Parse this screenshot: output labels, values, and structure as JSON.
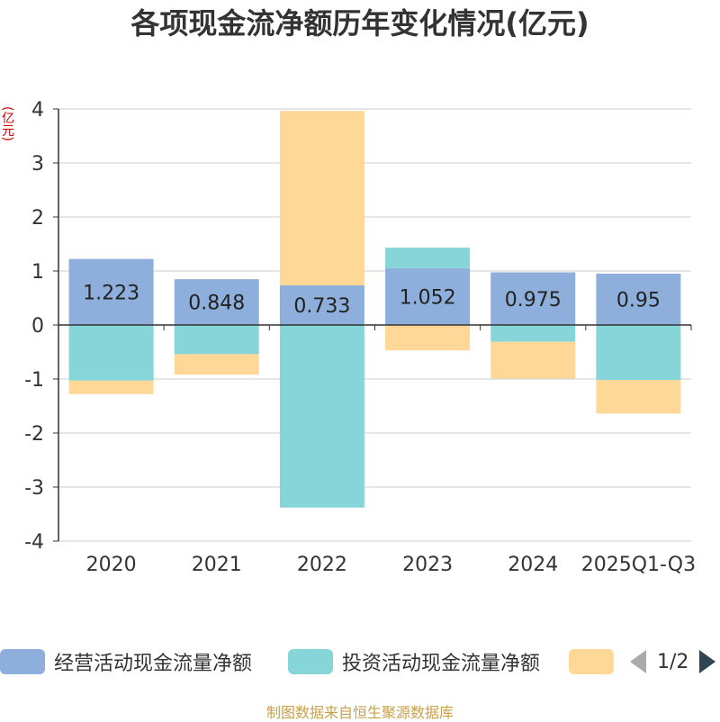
{
  "chart_data": {
    "type": "bar",
    "stacked": true,
    "title": "各项现金流净额历年变化情况(亿元)",
    "ylabel": "(亿元)",
    "xlabel": "",
    "ylim": [
      -4,
      4
    ],
    "yticks": [
      4,
      3,
      2,
      1,
      0,
      -1,
      -2,
      -3,
      -4
    ],
    "categories": [
      "2020",
      "2021",
      "2022",
      "2023",
      "2024",
      "2025Q1-Q3"
    ],
    "series": [
      {
        "name": "经营活动现金流量净额",
        "color": "#8eaedb",
        "values": [
          1.223,
          0.848,
          0.733,
          1.052,
          0.975,
          0.95
        ]
      },
      {
        "name": "投资活动现金流量净额",
        "color": "#86d5d8",
        "values": [
          -1.03,
          -0.54,
          -3.38,
          0.38,
          -0.31,
          -1.02
        ]
      },
      {
        "name": "",
        "color": "#ffd898",
        "values": [
          -0.25,
          -0.38,
          3.23,
          -0.47,
          -0.68,
          -0.62
        ]
      }
    ],
    "data_labels": [
      "1.223",
      "0.848",
      "0.733",
      "1.052",
      "0.975",
      "0.95"
    ],
    "grid": true,
    "legend": "bottom"
  },
  "legend": {
    "items": [
      "经营活动现金流量净额",
      "投资活动现金流量净额",
      ""
    ],
    "page": "1/2"
  },
  "source": "制图数据来自恒生聚源数据库"
}
